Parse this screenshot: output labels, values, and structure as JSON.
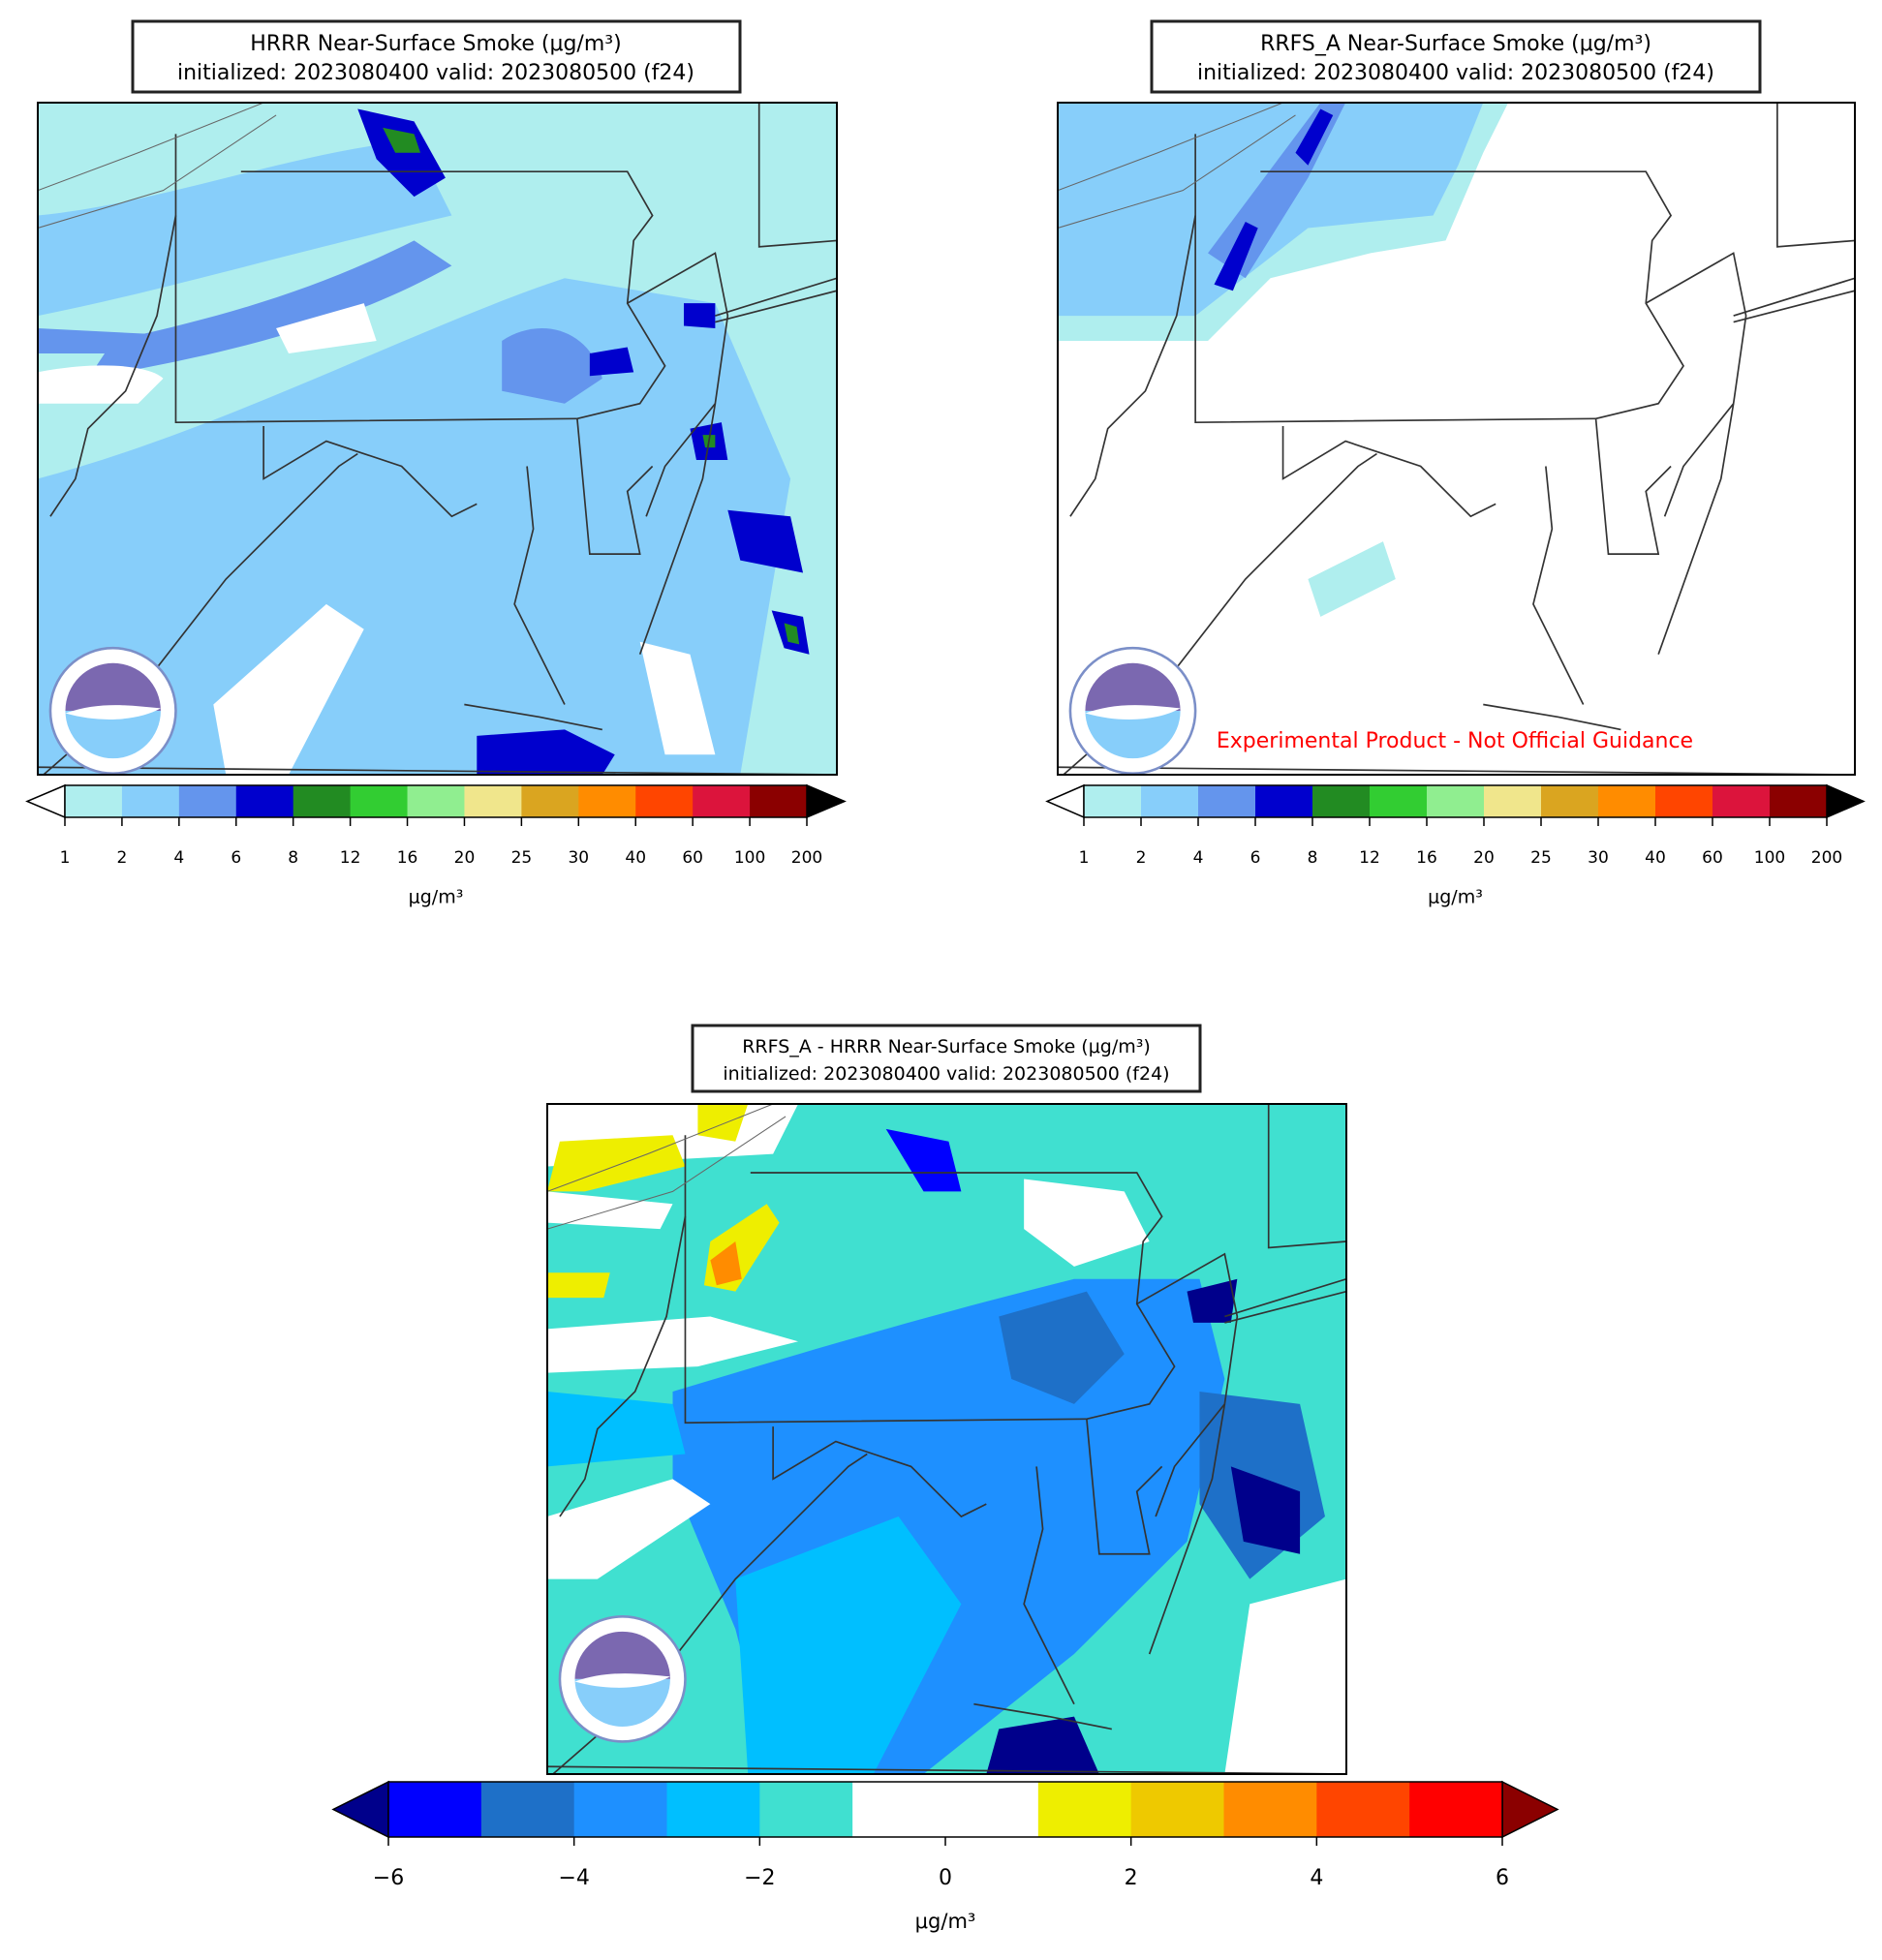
{
  "panels": [
    {
      "title": "HRRR Near-Surface Smoke (μg/m³)",
      "subtitle": "initialized: 2023080400 valid: 2023080500 (f24)",
      "colorbar": {
        "colors": [
          "#afeeee",
          "#87cefa",
          "#6495ed",
          "#0000cd",
          "#228b22",
          "#32cd32",
          "#90ee90",
          "#f0e68c",
          "#daa520",
          "#ff8c00",
          "#ff4500",
          "#dc143c",
          "#8b0000"
        ],
        "under": "#ffffff",
        "over": "#000000",
        "ticks": [
          1,
          2,
          4,
          6,
          8,
          12,
          16,
          20,
          25,
          30,
          40,
          60,
          100,
          200
        ],
        "label": "μg/m³"
      }
    },
    {
      "title": "RRFS_A Near-Surface Smoke (μg/m³)",
      "subtitle": "initialized: 2023080400 valid: 2023080500 (f24)",
      "watermark": "Experimental Product - Not Official Guidance",
      "colorbar": {
        "colors": [
          "#afeeee",
          "#87cefa",
          "#6495ed",
          "#0000cd",
          "#228b22",
          "#32cd32",
          "#90ee90",
          "#f0e68c",
          "#daa520",
          "#ff8c00",
          "#ff4500",
          "#dc143c",
          "#8b0000"
        ],
        "under": "#ffffff",
        "over": "#000000",
        "ticks": [
          1,
          2,
          4,
          6,
          8,
          12,
          16,
          20,
          25,
          30,
          40,
          60,
          100,
          200
        ],
        "label": "μg/m³"
      }
    },
    {
      "title": "RRFS_A - HRRR Near-Surface Smoke (μg/m³)",
      "subtitle": "initialized: 2023080400 valid: 2023080500 (f24)",
      "colorbar": {
        "colors": [
          "#0000ff",
          "#1e70c8",
          "#1e90ff",
          "#00bfff",
          "#40e0d0",
          "#ffffff",
          "#ffffff",
          "#eeee00",
          "#eec900",
          "#ff8c00",
          "#ff4500",
          "#ff0000"
        ],
        "under": "#00008b",
        "over": "#8b0000",
        "ticks": [
          {
            "value": -6,
            "label": "−6"
          },
          {
            "value": -4,
            "label": "−4"
          },
          {
            "value": -2,
            "label": "−2"
          },
          0,
          2,
          4,
          6
        ],
        "label": "μg/m³"
      }
    }
  ]
}
